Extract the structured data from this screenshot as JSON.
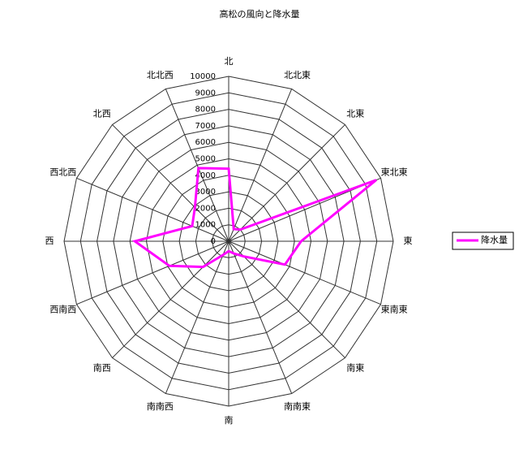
{
  "chart_data": {
    "type": "radar",
    "title": "高松の風向と降水量",
    "categories": [
      "北",
      "北北東",
      "北東",
      "東北東",
      "東",
      "東南東",
      "南東",
      "南南東",
      "南",
      "南南西",
      "南西",
      "西南西",
      "西",
      "西北西",
      "北西",
      "北北西"
    ],
    "series": [
      {
        "name": "降水量",
        "color": "#ff00ff",
        "values": [
          4400,
          800,
          1000,
          9700,
          4400,
          3700,
          1300,
          800,
          600,
          900,
          2200,
          3900,
          5700,
          2400,
          2900,
          4800
        ]
      }
    ],
    "ylim": [
      0,
      10000
    ],
    "yticks": [
      0,
      1000,
      2000,
      3000,
      4000,
      5000,
      6000,
      7000,
      8000,
      9000,
      10000
    ],
    "grid": true,
    "legend": "right"
  }
}
